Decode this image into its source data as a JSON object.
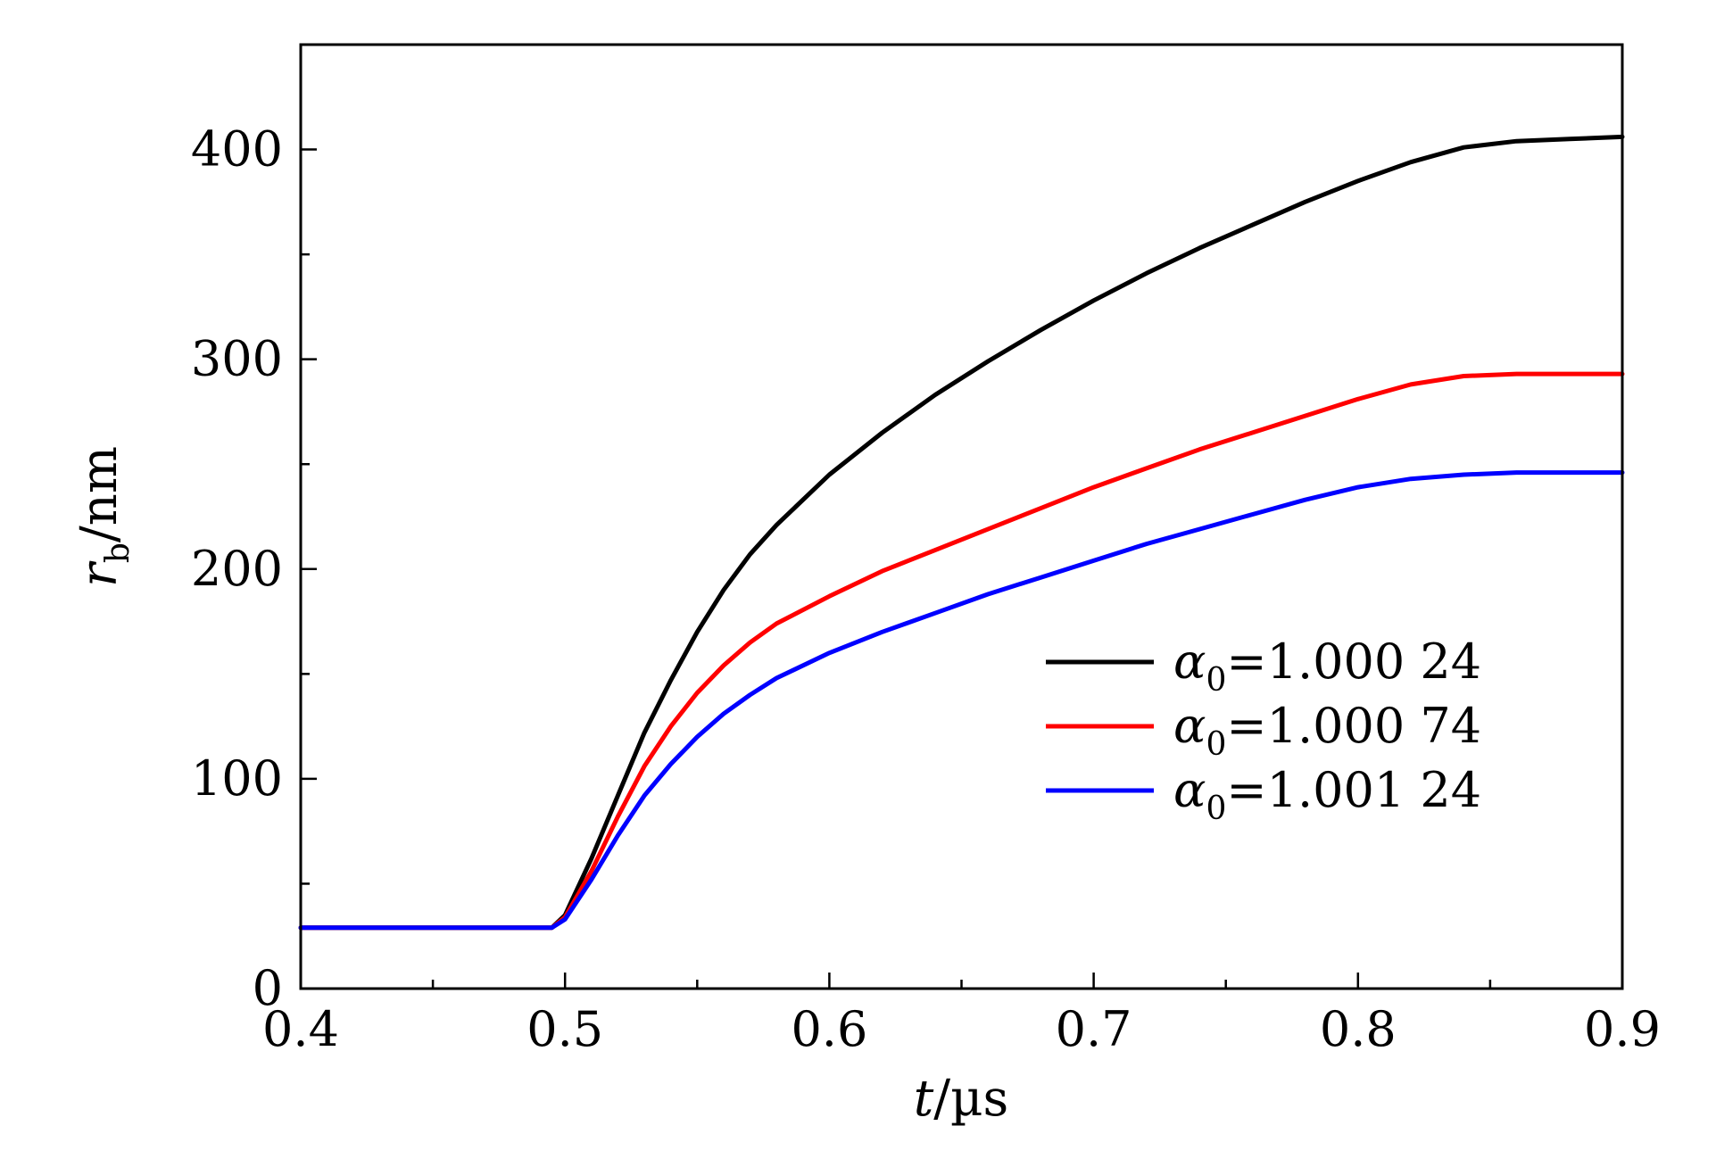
{
  "chart_data": {
    "type": "line",
    "xlabel": {
      "var": "t",
      "unit": "/µs"
    },
    "ylabel": {
      "var": "r",
      "sub": "b",
      "unit": "/nm"
    },
    "xlim": [
      0.4,
      0.9
    ],
    "ylim": [
      0,
      450
    ],
    "x_ticks": [
      "0.4",
      "0.5",
      "0.6",
      "0.7",
      "0.8",
      "0.9"
    ],
    "y_ticks": [
      "0",
      "100",
      "200",
      "300",
      "400"
    ],
    "grid": false,
    "legend_position": "center-right",
    "series": [
      {
        "name": "α0=1.000 24",
        "legend": {
          "sym": "α",
          "sub": "0",
          "value": "=1.000 24"
        },
        "color": "#000000",
        "points": [
          [
            0.4,
            29
          ],
          [
            0.45,
            29
          ],
          [
            0.495,
            29
          ],
          [
            0.5,
            35
          ],
          [
            0.51,
            62
          ],
          [
            0.52,
            92
          ],
          [
            0.53,
            122
          ],
          [
            0.54,
            147
          ],
          [
            0.55,
            170
          ],
          [
            0.56,
            190
          ],
          [
            0.57,
            207
          ],
          [
            0.58,
            221
          ],
          [
            0.6,
            245
          ],
          [
            0.62,
            265
          ],
          [
            0.64,
            283
          ],
          [
            0.66,
            299
          ],
          [
            0.68,
            314
          ],
          [
            0.7,
            328
          ],
          [
            0.72,
            341
          ],
          [
            0.74,
            353
          ],
          [
            0.76,
            364
          ],
          [
            0.78,
            375
          ],
          [
            0.8,
            385
          ],
          [
            0.82,
            394
          ],
          [
            0.84,
            401
          ],
          [
            0.86,
            404
          ],
          [
            0.88,
            405
          ],
          [
            0.9,
            406
          ]
        ]
      },
      {
        "name": "α0=1.000 74",
        "legend": {
          "sym": "α",
          "sub": "0",
          "value": "=1.000 74"
        },
        "color": "#ff0000",
        "points": [
          [
            0.4,
            29
          ],
          [
            0.45,
            29
          ],
          [
            0.495,
            29
          ],
          [
            0.5,
            34
          ],
          [
            0.51,
            56
          ],
          [
            0.52,
            82
          ],
          [
            0.53,
            106
          ],
          [
            0.54,
            125
          ],
          [
            0.55,
            141
          ],
          [
            0.56,
            154
          ],
          [
            0.57,
            165
          ],
          [
            0.58,
            174
          ],
          [
            0.6,
            187
          ],
          [
            0.62,
            199
          ],
          [
            0.64,
            209
          ],
          [
            0.66,
            219
          ],
          [
            0.68,
            229
          ],
          [
            0.7,
            239
          ],
          [
            0.72,
            248
          ],
          [
            0.74,
            257
          ],
          [
            0.76,
            265
          ],
          [
            0.78,
            273
          ],
          [
            0.8,
            281
          ],
          [
            0.82,
            288
          ],
          [
            0.84,
            292
          ],
          [
            0.86,
            293
          ],
          [
            0.9,
            293
          ]
        ]
      },
      {
        "name": "α0=1.001 24",
        "legend": {
          "sym": "α",
          "sub": "0",
          "value": "=1.001 24"
        },
        "color": "#0000ff",
        "points": [
          [
            0.4,
            29
          ],
          [
            0.45,
            29
          ],
          [
            0.495,
            29
          ],
          [
            0.5,
            33
          ],
          [
            0.51,
            52
          ],
          [
            0.52,
            73
          ],
          [
            0.53,
            92
          ],
          [
            0.54,
            107
          ],
          [
            0.55,
            120
          ],
          [
            0.56,
            131
          ],
          [
            0.57,
            140
          ],
          [
            0.58,
            148
          ],
          [
            0.6,
            160
          ],
          [
            0.62,
            170
          ],
          [
            0.64,
            179
          ],
          [
            0.66,
            188
          ],
          [
            0.68,
            196
          ],
          [
            0.7,
            204
          ],
          [
            0.72,
            212
          ],
          [
            0.74,
            219
          ],
          [
            0.76,
            226
          ],
          [
            0.78,
            233
          ],
          [
            0.8,
            239
          ],
          [
            0.82,
            243
          ],
          [
            0.84,
            245
          ],
          [
            0.86,
            246
          ],
          [
            0.9,
            246
          ]
        ]
      }
    ]
  }
}
